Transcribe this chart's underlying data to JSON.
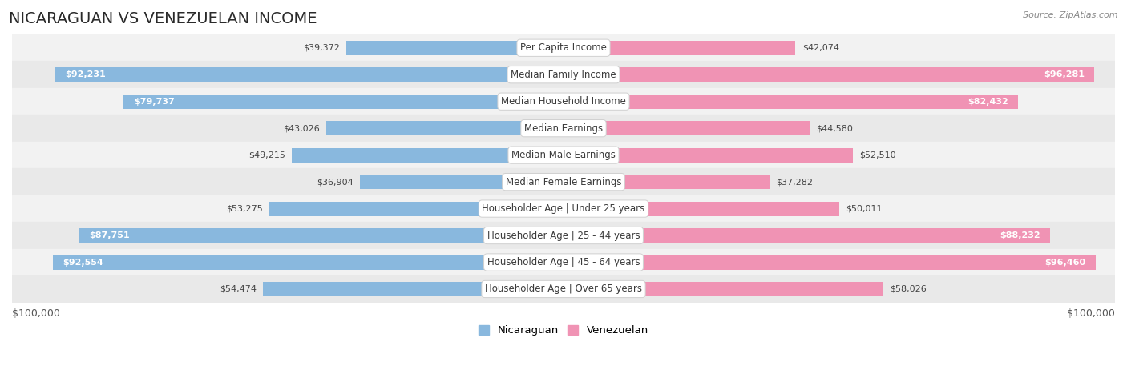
{
  "title": "NICARAGUAN VS VENEZUELAN INCOME",
  "source": "Source: ZipAtlas.com",
  "categories": [
    "Per Capita Income",
    "Median Family Income",
    "Median Household Income",
    "Median Earnings",
    "Median Male Earnings",
    "Median Female Earnings",
    "Householder Age | Under 25 years",
    "Householder Age | 25 - 44 years",
    "Householder Age | 45 - 64 years",
    "Householder Age | Over 65 years"
  ],
  "nicaraguan_values": [
    39372,
    92231,
    79737,
    43026,
    49215,
    36904,
    53275,
    87751,
    92554,
    54474
  ],
  "venezuelan_values": [
    42074,
    96281,
    82432,
    44580,
    52510,
    37282,
    50011,
    88232,
    96460,
    58026
  ],
  "nicaraguan_labels": [
    "$39,372",
    "$92,231",
    "$79,737",
    "$43,026",
    "$49,215",
    "$36,904",
    "$53,275",
    "$87,751",
    "$92,554",
    "$54,474"
  ],
  "venezuelan_labels": [
    "$42,074",
    "$96,281",
    "$82,432",
    "$44,580",
    "$52,510",
    "$37,282",
    "$50,011",
    "$88,232",
    "$96,460",
    "$58,026"
  ],
  "max_value": 100000,
  "nicaraguan_color": "#89b8de",
  "venezuelan_color": "#f093b4",
  "row_colors": [
    "#f2f2f2",
    "#e9e9e9"
  ],
  "bar_height": 0.54,
  "label_inside_threshold": 72000,
  "x_axis_label_left": "$100,000",
  "x_axis_label_right": "$100,000",
  "legend_nicaraguan": "Nicaraguan",
  "legend_venezuelan": "Venezuelan",
  "title_fontsize": 14,
  "source_fontsize": 8,
  "label_fontsize": 8,
  "cat_fontsize": 8.5
}
